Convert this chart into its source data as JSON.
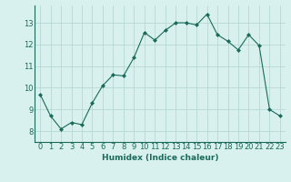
{
  "x": [
    0,
    1,
    2,
    3,
    4,
    5,
    6,
    7,
    8,
    9,
    10,
    11,
    12,
    13,
    14,
    15,
    16,
    17,
    18,
    19,
    20,
    21,
    22,
    23
  ],
  "y": [
    9.7,
    8.7,
    8.1,
    8.4,
    8.3,
    9.3,
    10.1,
    10.6,
    10.55,
    11.4,
    12.55,
    12.2,
    12.65,
    13.0,
    13.0,
    12.9,
    13.4,
    12.45,
    12.15,
    11.75,
    12.45,
    11.95,
    9.0,
    8.7
  ],
  "line_color": "#1a6b5a",
  "marker": "D",
  "marker_size": 2.0,
  "bg_color": "#d8f0ee",
  "grid_color": "#b8d8d4",
  "xlabel": "Humidex (Indice chaleur)",
  "xlim": [
    -0.5,
    23.5
  ],
  "ylim": [
    7.5,
    13.8
  ],
  "yticks": [
    8,
    9,
    10,
    11,
    12,
    13
  ],
  "xticks": [
    0,
    1,
    2,
    3,
    4,
    5,
    6,
    7,
    8,
    9,
    10,
    11,
    12,
    13,
    14,
    15,
    16,
    17,
    18,
    19,
    20,
    21,
    22,
    23
  ],
  "label_fontsize": 6.5,
  "tick_fontsize": 6.0
}
